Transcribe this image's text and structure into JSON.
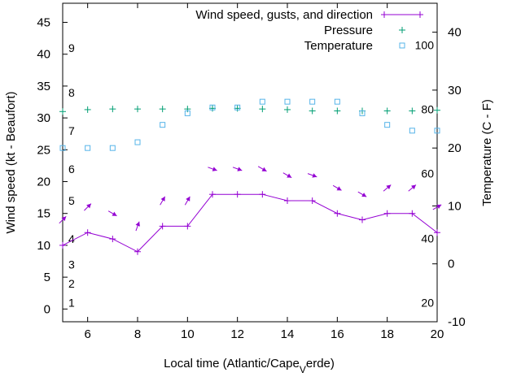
{
  "chart_data": {
    "type": "line",
    "title": "",
    "xlabel_main": "Local time (Atlantic/Cape",
    "xlabel_sub": "V",
    "xlabel_tail": "erde)",
    "ylabel": "Wind speed (kt - Beaufort)",
    "y2label": "Temperature (C - F)",
    "xlim": [
      5,
      20
    ],
    "ylim": [
      -2,
      48
    ],
    "y2lim": [
      -10,
      45
    ],
    "xticks": [
      6,
      8,
      10,
      12,
      14,
      16,
      18,
      20
    ],
    "yticks": [
      0,
      5,
      10,
      15,
      20,
      25,
      30,
      35,
      40,
      45
    ],
    "y2ticks": [
      -10,
      0,
      10,
      20,
      30,
      40
    ],
    "legend": {
      "position": "top-right",
      "entries": [
        {
          "label": "Wind speed, gusts, and direction",
          "color": "#9400d3",
          "marker": "line-plus"
        },
        {
          "label": "Pressure",
          "color": "#009e73",
          "marker": "plus"
        },
        {
          "label": "Temperature",
          "color": "#56b4e9",
          "marker": "square"
        }
      ]
    },
    "beaufort_labels": [
      {
        "text": "1",
        "y": 1
      },
      {
        "text": "2",
        "y": 4
      },
      {
        "text": "3",
        "y": 7
      },
      {
        "text": "4",
        "y": 11
      },
      {
        "text": "5",
        "y": 17
      },
      {
        "text": "6",
        "y": 22
      },
      {
        "text": "7",
        "y": 28
      },
      {
        "text": "8",
        "y": 34
      },
      {
        "text": "9",
        "y": 41
      }
    ],
    "fahrenheit_labels": [
      {
        "text": "20",
        "y2": -6.7
      },
      {
        "text": "40",
        "y2": 4.4
      },
      {
        "text": "60",
        "y2": 15.6
      },
      {
        "text": "80",
        "y2": 26.7
      },
      {
        "text": "100",
        "y2": 37.8
      }
    ],
    "series": [
      {
        "name": "Wind speed",
        "color": "#9400d3",
        "x": [
          5,
          6,
          7,
          8,
          9,
          10,
          11,
          12,
          13,
          14,
          15,
          16,
          17,
          18,
          19,
          20
        ],
        "values": [
          10,
          12,
          11,
          9,
          13,
          13,
          18,
          18,
          18,
          17,
          17,
          15,
          14,
          15,
          15,
          12
        ]
      },
      {
        "name": "Wind direction",
        "color": "#9400d3",
        "x": [
          5,
          6,
          7,
          8,
          9,
          10,
          11,
          12,
          13,
          14,
          15,
          16,
          17,
          18,
          19,
          20
        ],
        "y": [
          14,
          16,
          15,
          13,
          17,
          17,
          22,
          22,
          22,
          21,
          21,
          19,
          18,
          19,
          19,
          16
        ],
        "direction_deg": [
          225,
          225,
          300,
          200,
          210,
          210,
          290,
          290,
          300,
          300,
          290,
          300,
          300,
          230,
          230,
          240
        ]
      },
      {
        "name": "Pressure",
        "color": "#009e73",
        "x": [
          5,
          6,
          7,
          8,
          9,
          10,
          11,
          12,
          13,
          14,
          15,
          16,
          17,
          18,
          19,
          20
        ],
        "values": [
          31,
          31.3,
          31.4,
          31.4,
          31.4,
          31.4,
          31.5,
          31.5,
          31.4,
          31.3,
          31.1,
          31.1,
          31.1,
          31.1,
          31.1,
          31.2
        ]
      },
      {
        "name": "Temperature",
        "color": "#56b4e9",
        "axis": "y2",
        "x": [
          5,
          6,
          7,
          8,
          9,
          10,
          11,
          12,
          13,
          14,
          15,
          16,
          17,
          18,
          19,
          20
        ],
        "values": [
          20,
          20,
          20,
          21,
          24,
          26,
          27,
          27,
          28,
          28,
          28,
          28,
          26,
          24,
          23,
          23
        ]
      }
    ]
  }
}
